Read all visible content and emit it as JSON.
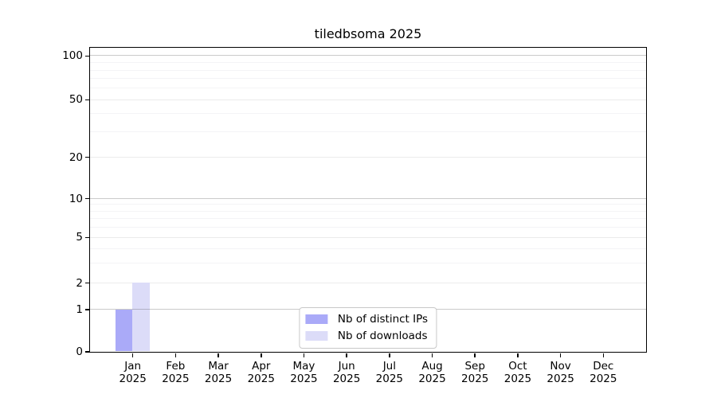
{
  "chart_data": {
    "type": "bar",
    "title": "tiledbsoma 2025",
    "categories": [
      "Jan",
      "Feb",
      "Mar",
      "Apr",
      "May",
      "Jun",
      "Jul",
      "Aug",
      "Sep",
      "Oct",
      "Nov",
      "Dec"
    ],
    "x_year_label": "2025",
    "series": [
      {
        "name": "Nb of distinct IPs",
        "color": "#aaaaf8",
        "values": [
          1,
          0,
          0,
          0,
          0,
          0,
          0,
          0,
          0,
          0,
          0,
          0
        ]
      },
      {
        "name": "Nb of downloads",
        "color": "#dcdcf8",
        "values": [
          2,
          0,
          0,
          0,
          0,
          0,
          0,
          0,
          0,
          0,
          0,
          0
        ]
      }
    ],
    "xlabel": "",
    "ylabel": "",
    "yticks": [
      0,
      1,
      2,
      5,
      10,
      20,
      50,
      100
    ],
    "yscale": "log-like (linear 0-1, log above)",
    "ylim": [
      0,
      110
    ],
    "grid": "on",
    "emphasized_gridlines": [
      1,
      10,
      100
    ],
    "legend_position": "lower center"
  },
  "colors": {
    "bar_distinct_ips": "#aaaaf8",
    "bar_downloads": "#dcdcf8",
    "grid_minor": "#f4f4f6",
    "grid_major": "#ebebeb",
    "grid_emphasis": "#c9c9c9",
    "axis_spine": "#000000",
    "legend_border": "#c8c8c8",
    "background": "#ffffff"
  }
}
